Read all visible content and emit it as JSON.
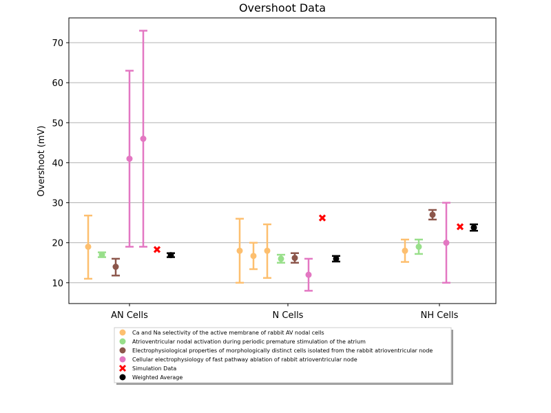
{
  "chart_data": {
    "type": "scatter",
    "title": "Overshoot Data",
    "xlabel": "",
    "ylabel": "Overshoot (mV)",
    "ylim": [
      4.8,
      76.2
    ],
    "yticks": [
      10,
      20,
      30,
      40,
      50,
      60,
      70
    ],
    "categories": [
      "AN Cells",
      "N Cells",
      "NH Cells"
    ],
    "grid": "horizontal",
    "legend_position": "below plot",
    "series": [
      {
        "name": "Ca and Na selectivity of the active membrane of rabbit AV nodal cells",
        "color": "#fdbf6f",
        "marker": "circle",
        "points": [
          {
            "category": "AN Cells",
            "y": 19,
            "low": 11,
            "high": 26.8
          },
          {
            "category": "N Cells",
            "y": 18,
            "low": 10,
            "high": 26
          },
          {
            "category": "N Cells",
            "y": 16.7,
            "low": 13.4,
            "high": 20
          },
          {
            "category": "N Cells",
            "y": 18,
            "low": 11.2,
            "high": 24.6
          },
          {
            "category": "NH Cells",
            "y": 18,
            "low": 15.2,
            "high": 20.8
          }
        ]
      },
      {
        "name": "Atrioventricular nodal activation during periodic premature stimulation of the atrium",
        "color": "#98df8a",
        "marker": "circle",
        "points": [
          {
            "category": "AN Cells",
            "y": 17,
            "low": 16.4,
            "high": 17.6
          },
          {
            "category": "N Cells",
            "y": 16,
            "low": 15,
            "high": 17
          },
          {
            "category": "NH Cells",
            "y": 19,
            "low": 17.2,
            "high": 20.8
          }
        ]
      },
      {
        "name": "Electrophysiological properties of morphologically distinct cells isolated from the rabbit atrioventricular node",
        "color": "#8c564b",
        "marker": "circle",
        "points": [
          {
            "category": "AN Cells",
            "y": 14,
            "low": 11.8,
            "high": 16
          },
          {
            "category": "N Cells",
            "y": 16.2,
            "low": 15,
            "high": 17.4
          },
          {
            "category": "NH Cells",
            "y": 27,
            "low": 25.8,
            "high": 28.2
          }
        ]
      },
      {
        "name": "Cellular electrophysiology of fast pathway ablation of rabbit atrioventricular node",
        "color": "#e377c2",
        "marker": "circle",
        "points": [
          {
            "category": "AN Cells",
            "y": 41,
            "low": 19,
            "high": 63
          },
          {
            "category": "AN Cells",
            "y": 46,
            "low": 19,
            "high": 73
          },
          {
            "category": "N Cells",
            "y": 12,
            "low": 8,
            "high": 16
          },
          {
            "category": "NH Cells",
            "y": 20,
            "low": 10,
            "high": 30
          }
        ]
      },
      {
        "name": "Simulation Data",
        "color": "#ff0000",
        "marker": "x",
        "points": [
          {
            "category": "AN Cells",
            "y": 18.3
          },
          {
            "category": "N Cells",
            "y": 26.2
          },
          {
            "category": "NH Cells",
            "y": 24
          }
        ]
      },
      {
        "name": "Weighted Average",
        "color": "#000000",
        "marker": "circle",
        "points": [
          {
            "category": "AN Cells",
            "y": 16.9,
            "low": 16.4,
            "high": 17.4
          },
          {
            "category": "N Cells",
            "y": 16,
            "low": 15.3,
            "high": 16.7
          },
          {
            "category": "NH Cells",
            "y": 23.8,
            "low": 23,
            "high": 24.6
          }
        ]
      }
    ]
  }
}
